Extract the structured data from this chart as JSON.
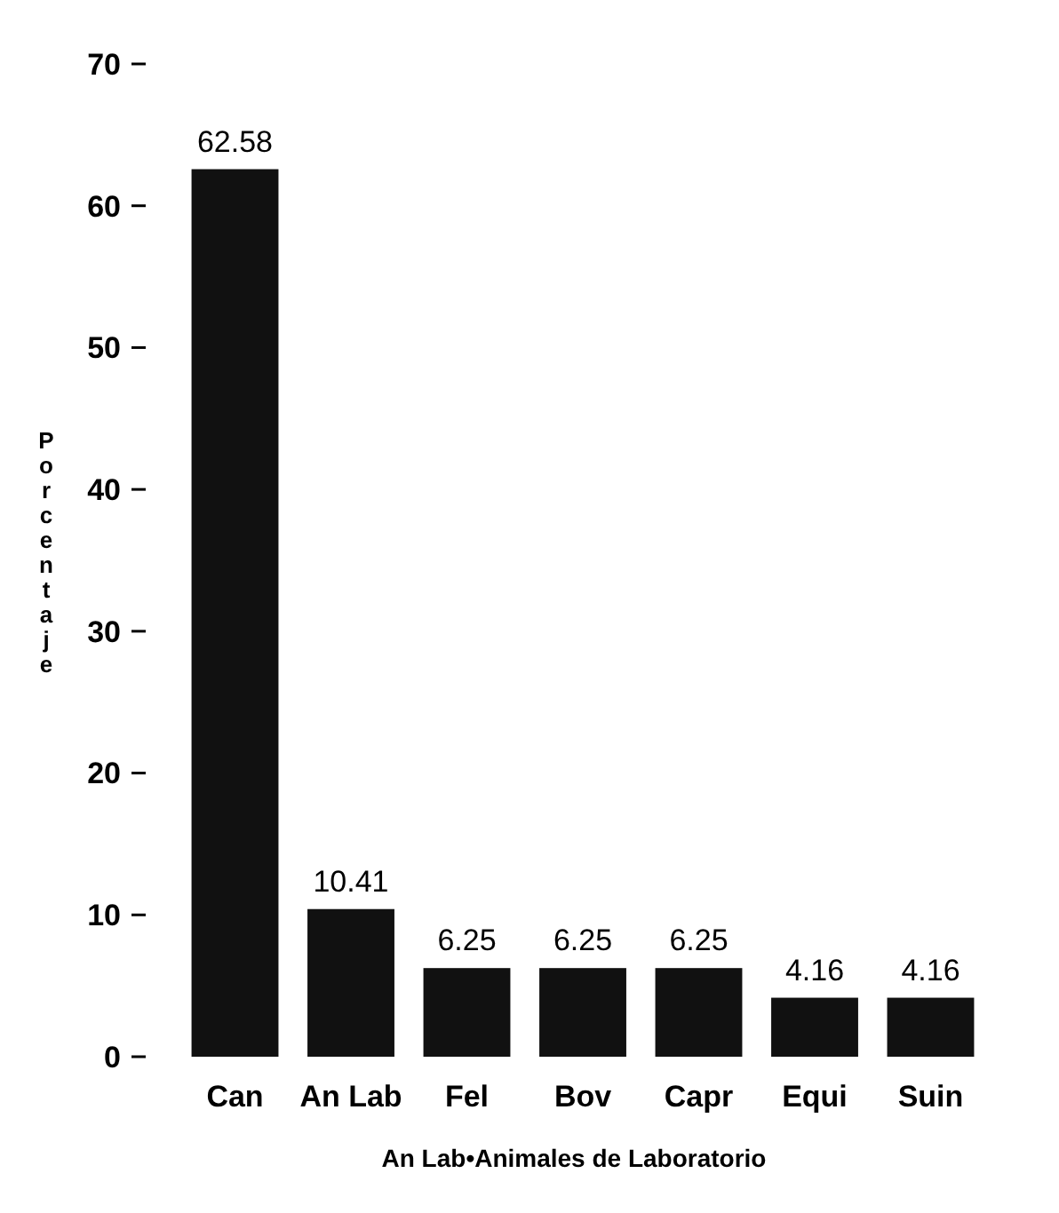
{
  "chart_data": {
    "type": "bar",
    "ylabel": "Porcentaje",
    "categories": [
      "Can",
      "An Lab",
      "Fel",
      "Bov",
      "Capr",
      "Equi",
      "Suin"
    ],
    "values": [
      62.58,
      10.41,
      6.25,
      6.25,
      6.25,
      4.16,
      4.16
    ],
    "color": "#111111",
    "ylim": [
      0,
      70
    ],
    "yticks": [
      0,
      10,
      20,
      30,
      40,
      50,
      60,
      70
    ],
    "data_labels": true,
    "grid": false,
    "annotations": [
      "An Lab•Animales de Laboratorio"
    ]
  }
}
